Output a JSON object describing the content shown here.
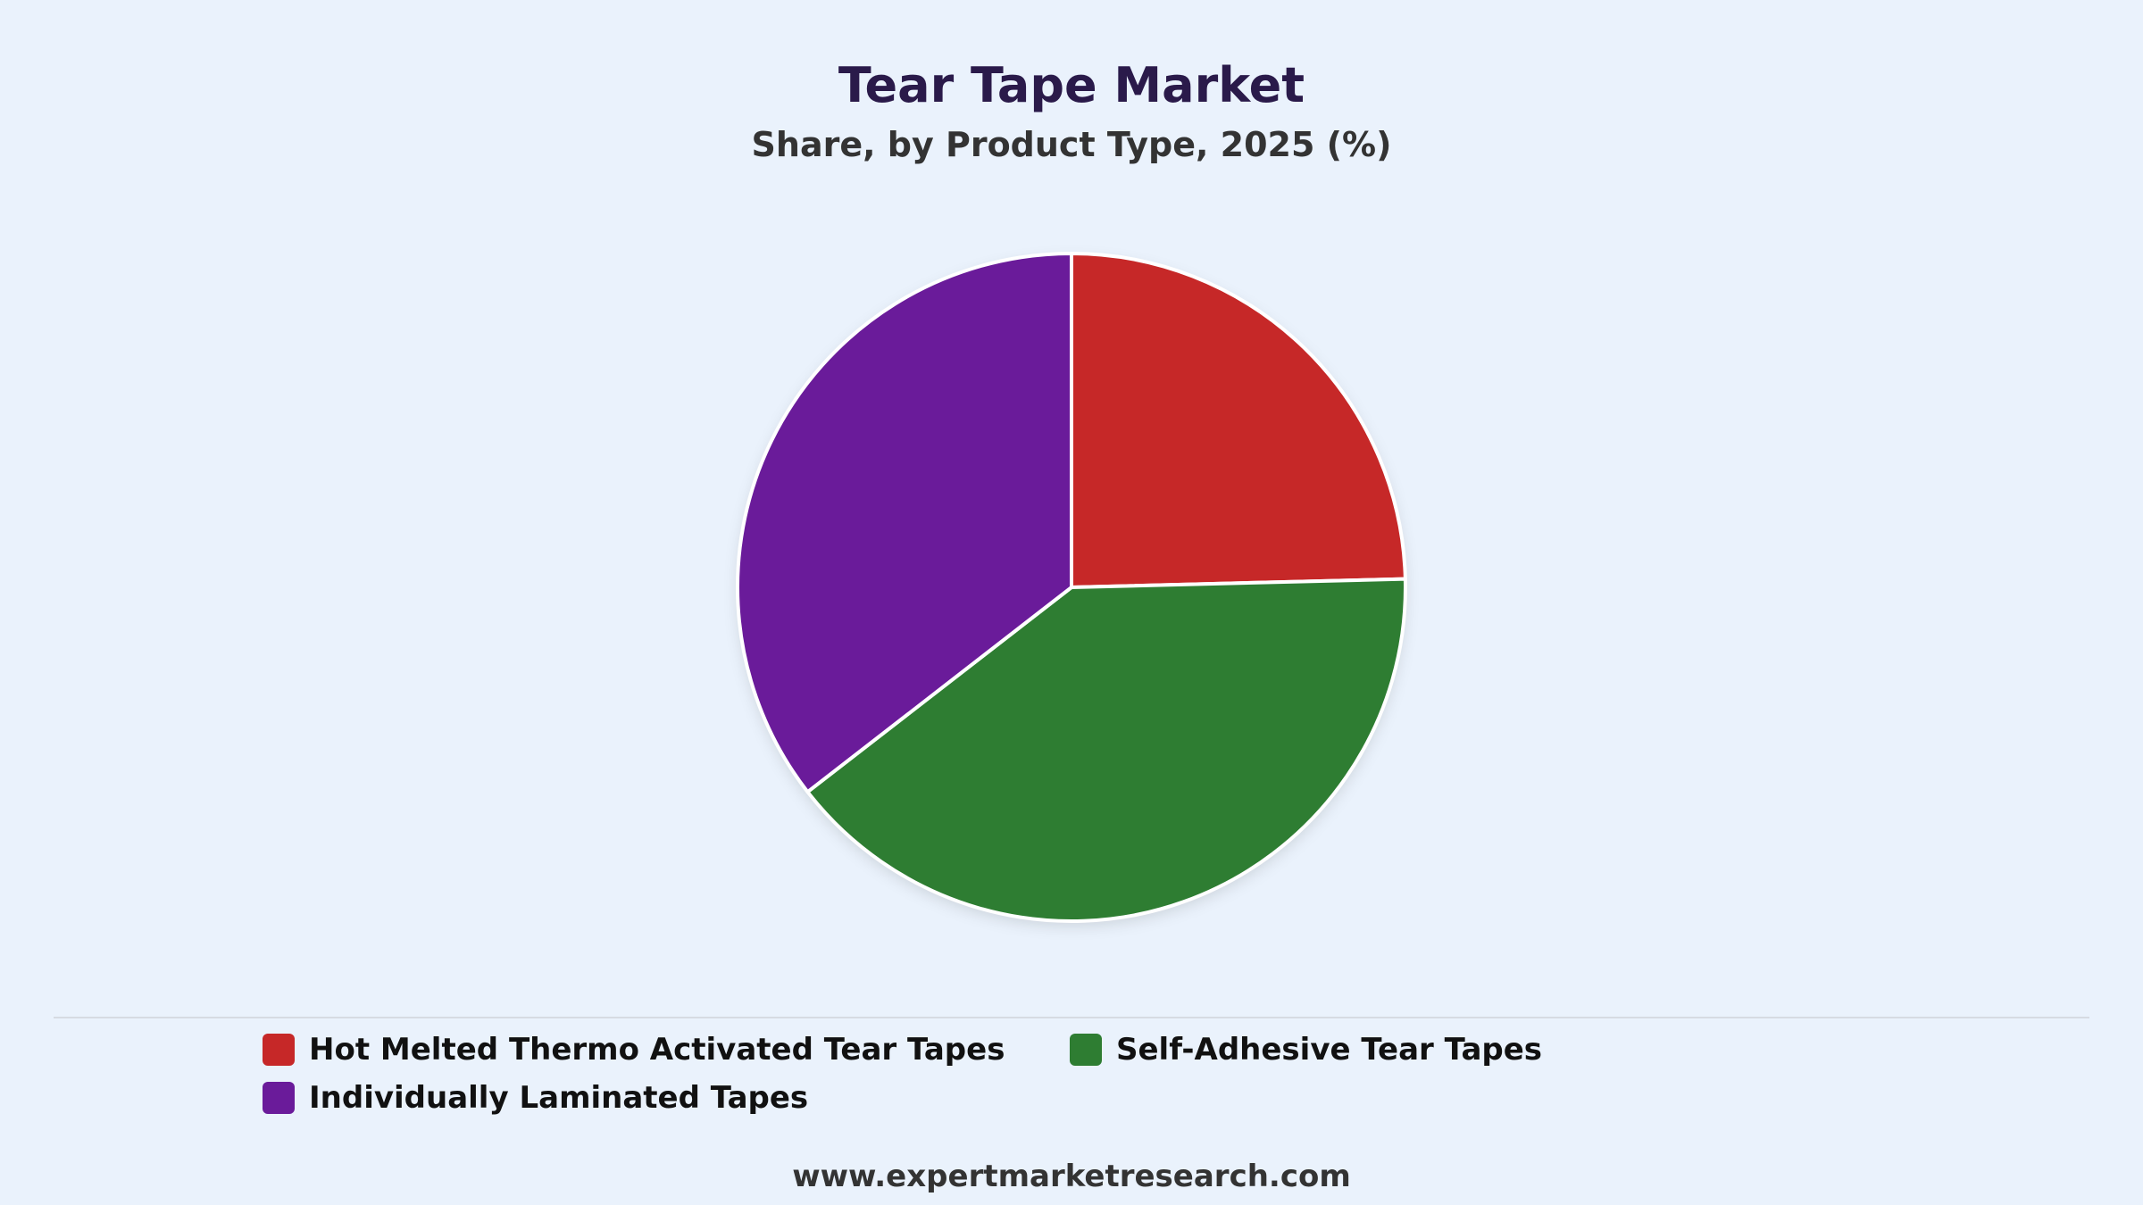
{
  "chart_data": {
    "type": "pie",
    "title": "Tear Tape Market",
    "subtitle": "Share, by Product Type, 2025 (%)",
    "slices": [
      {
        "label": "Hot Melted Thermo Activated Tear Tapes",
        "value": 24.6,
        "color": "#c62828"
      },
      {
        "label": "Self-Adhesive Tear Tapes",
        "value": 39.9,
        "color": "#2e7d32"
      },
      {
        "label": "Individually Laminated Tapes",
        "value": 35.5,
        "color": "#6a1b9a"
      }
    ],
    "start_angle": "12 o'clock",
    "direction": "clockwise",
    "legend_position": "bottom"
  },
  "footer": {
    "source": "www.expertmarketresearch.com"
  }
}
